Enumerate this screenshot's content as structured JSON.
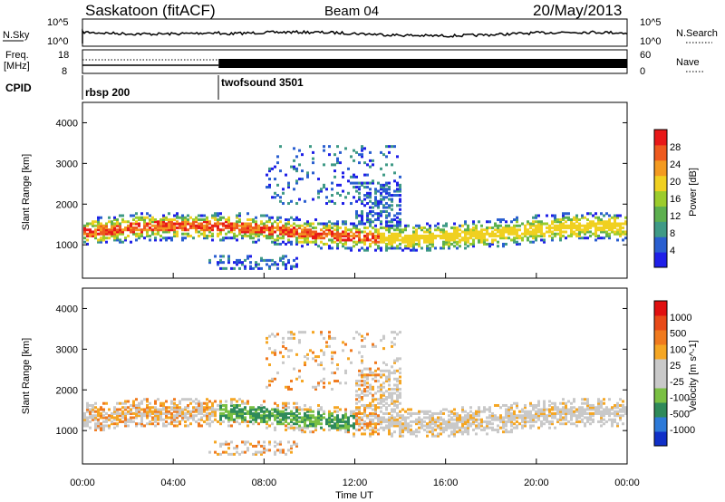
{
  "header": {
    "station": "Saskatoon (fitACF)",
    "beam": "Beam 04",
    "date": "20/May/2013"
  },
  "top_panels": {
    "nsky_label": "N.Sky",
    "nsky_ticks": [
      "10^5",
      "10^0"
    ],
    "nsearch_label": "N.Search",
    "nsearch_ticks": [
      "10^5",
      "10^0"
    ],
    "freq_label_1": "Freq.",
    "freq_label_2": "[MHz]",
    "freq_ticks": [
      "18",
      "8"
    ],
    "nave_label": "Nave",
    "nave_ticks": [
      "60",
      "0"
    ],
    "cpid_label": "CPID",
    "modes": [
      {
        "name": "rbsp 200",
        "start_hour": 0
      },
      {
        "name": "twofsound 3501",
        "start_hour": 6
      }
    ]
  },
  "chart_data": [
    {
      "type": "heatmap",
      "ylabel": "Slant Range [km]",
      "xlim": [
        0,
        24
      ],
      "ylim": [
        180,
        4500
      ],
      "ytick_values": [
        1000,
        2000,
        3000,
        4000
      ],
      "yticks": [
        "1000",
        "2000",
        "3000",
        "4000"
      ],
      "colorbar": {
        "label": "Power [dB]",
        "range": [
          0,
          32
        ],
        "ticks": [
          "4",
          "8",
          "12",
          "16",
          "20",
          "24",
          "28"
        ],
        "colors": [
          "#1f1fe8",
          "#2a5fd0",
          "#3f9a86",
          "#5db04f",
          "#9ccc2c",
          "#f0d020",
          "#f39a20",
          "#ee5a1e",
          "#e81818"
        ]
      }
    },
    {
      "type": "heatmap",
      "ylabel": "Slant Range [km]",
      "xlim": [
        0,
        24
      ],
      "ylim": [
        180,
        4500
      ],
      "ytick_values": [
        1000,
        2000,
        3000,
        4000
      ],
      "yticks": [
        "1000",
        "2000",
        "3000",
        "4000"
      ],
      "xlabel": "Time UT",
      "xticks": [
        "00:00",
        "04:00",
        "08:00",
        "12:00",
        "16:00",
        "20:00",
        "00:00"
      ],
      "colorbar": {
        "label": "Velocity [m s^-1]",
        "ticks": [
          "1000",
          "500",
          "100",
          "25",
          "-25",
          "-100",
          "-500",
          "-1000"
        ],
        "colors": [
          "#1030c8",
          "#2d7ad8",
          "#2f8a5a",
          "#7ac043",
          "#c9c9c9",
          "#c9c9c9",
          "#f5a623",
          "#f07a1e",
          "#e84a18",
          "#e01010"
        ]
      }
    }
  ]
}
